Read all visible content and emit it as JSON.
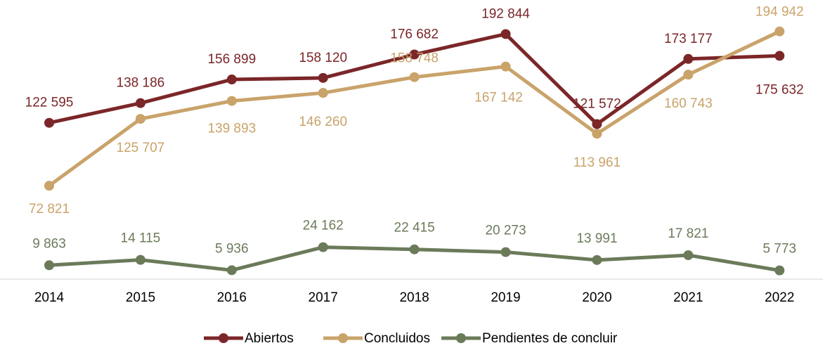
{
  "chart_data": {
    "type": "line",
    "categories": [
      "2014",
      "2015",
      "2016",
      "2017",
      "2018",
      "2019",
      "2020",
      "2021",
      "2022"
    ],
    "ylim": [
      0,
      200000
    ],
    "legend": "bottom",
    "series": [
      {
        "name": "Abiertos",
        "color": "#7b2628",
        "values": [
          122595,
          138186,
          156899,
          158120,
          176682,
          192844,
          121572,
          173177,
          175632
        ],
        "value_labels": [
          "122 595",
          "138 186",
          "156 899",
          "158 120",
          "176 682",
          "192 844",
          "121 572",
          "173 177",
          "175 632"
        ]
      },
      {
        "name": "Concluidos",
        "color": "#c9a36a",
        "values": [
          72821,
          125707,
          139893,
          146260,
          158748,
          167142,
          113961,
          160743,
          194942
        ],
        "value_labels": [
          "72 821",
          "125 707",
          "139 893",
          "146 260",
          "158 748",
          "167 142",
          "113 961",
          "160 743",
          "194 942"
        ]
      },
      {
        "name": "Pendientes de concluir",
        "color": "#6b7b5a",
        "values": [
          9863,
          14115,
          5936,
          24162,
          22415,
          20273,
          13991,
          17821,
          5773
        ],
        "value_labels": [
          "9 863",
          "14 115",
          "5 936",
          "24 162",
          "22 415",
          "20 273",
          "13 991",
          "17 821",
          "5 773"
        ]
      }
    ]
  }
}
